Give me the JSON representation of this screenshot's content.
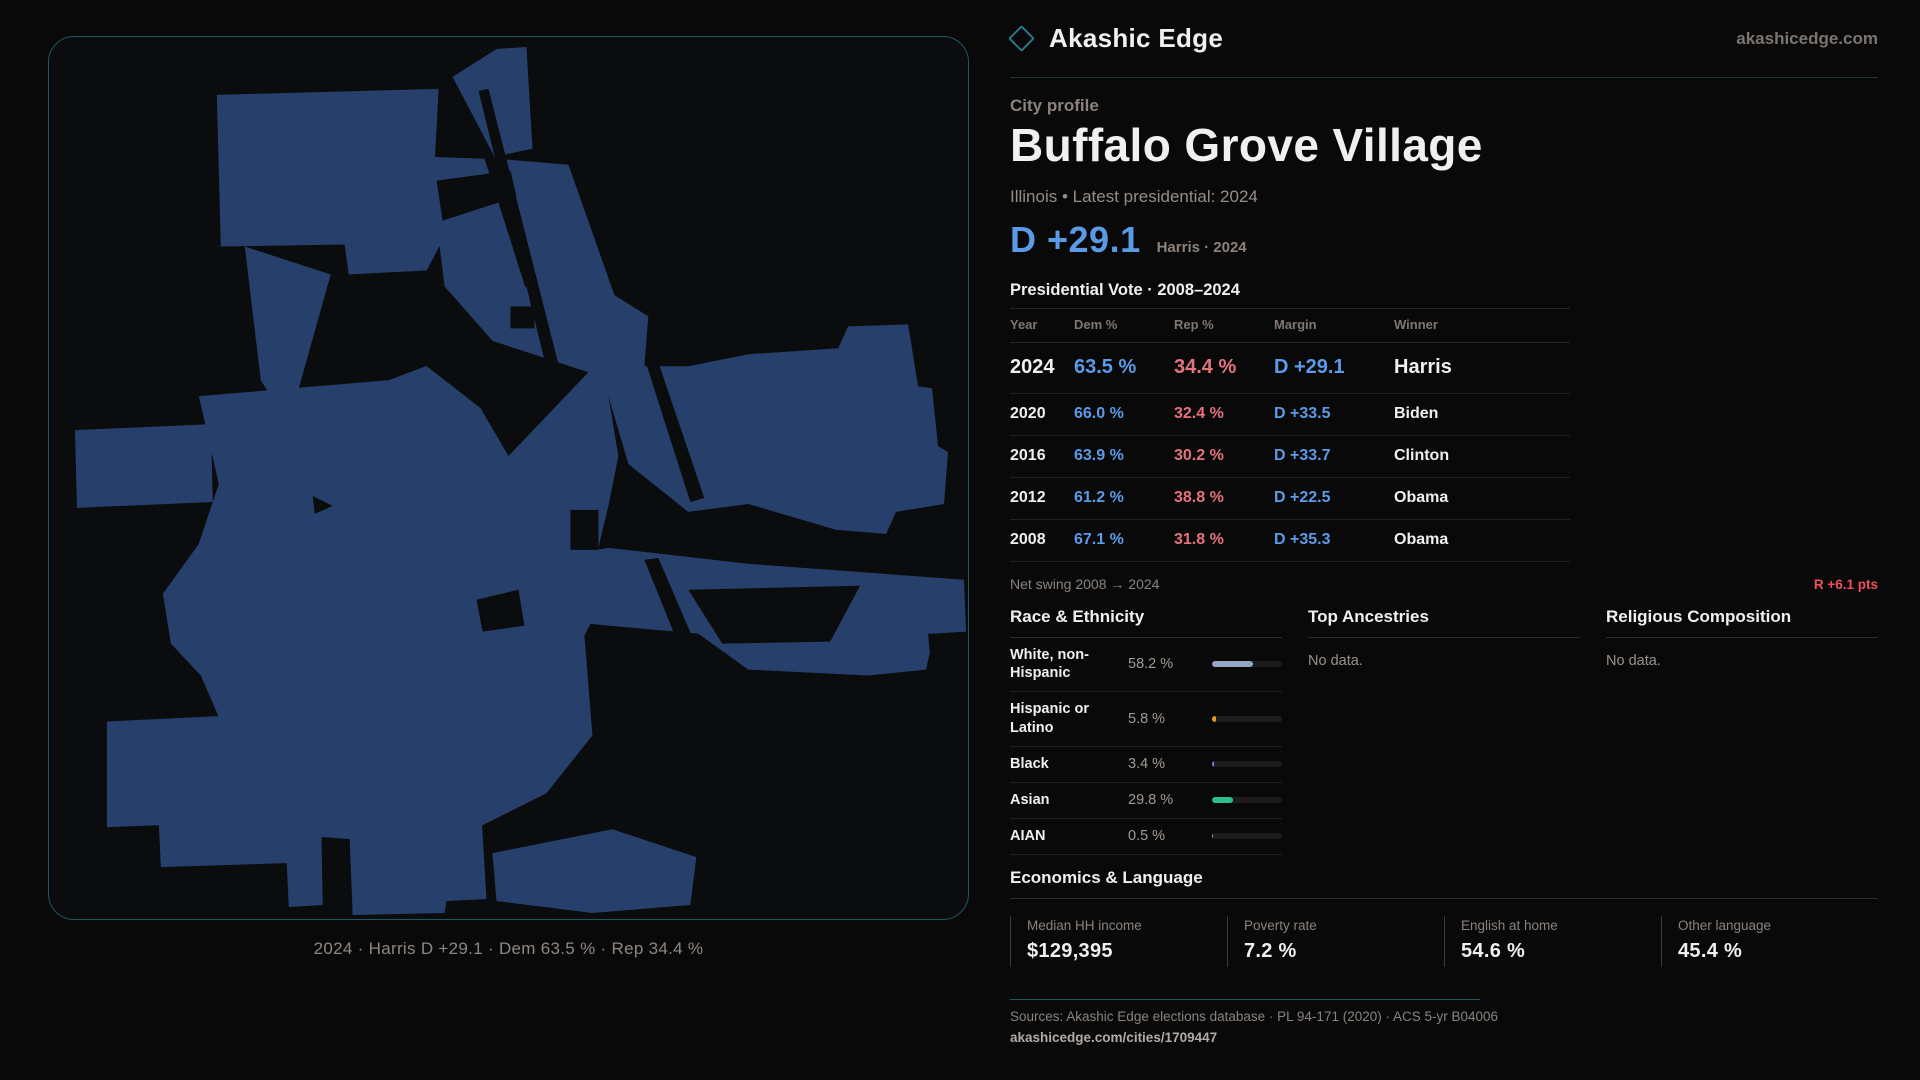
{
  "brand": {
    "name": "Akashic Edge",
    "domain": "akashicedge.com",
    "logo_icon": "diamond-outline-icon"
  },
  "page": {
    "kicker": "City profile",
    "title": "Buffalo Grove Village",
    "subtitle": "Illinois • Latest presidential: 2024"
  },
  "headline_margin": {
    "value": "D +29.1",
    "detail": "Harris · 2024"
  },
  "map": {
    "caption": "2024 · Harris D +29.1 · Dem 63.5 % · Rep 34.4 %",
    "boundary_color": "#26406b"
  },
  "vote_table": {
    "title": "Presidential Vote · 2008–2024",
    "columns": {
      "year": "Year",
      "dem": "Dem %",
      "rep": "Rep %",
      "margin": "Margin",
      "winner": "Winner"
    },
    "rows": [
      {
        "year": "2024",
        "dem": "63.5 %",
        "rep": "34.4 %",
        "margin": "D +29.1",
        "winner": "Harris"
      },
      {
        "year": "2020",
        "dem": "66.0 %",
        "rep": "32.4 %",
        "margin": "D +33.5",
        "winner": "Biden"
      },
      {
        "year": "2016",
        "dem": "63.9 %",
        "rep": "30.2 %",
        "margin": "D +33.7",
        "winner": "Clinton"
      },
      {
        "year": "2012",
        "dem": "61.2 %",
        "rep": "38.8 %",
        "margin": "D +22.5",
        "winner": "Obama"
      },
      {
        "year": "2008",
        "dem": "67.1 %",
        "rep": "31.8 %",
        "margin": "D +35.3",
        "winner": "Obama"
      }
    ],
    "net_swing_label": "Net swing 2008 → 2024",
    "net_swing_value": "R +6.1 pts",
    "accent_dem": "#5b9be8",
    "accent_rep": "#e5737d",
    "accent_swing": "#ef4f5a"
  },
  "race_section": {
    "title": "Race & Ethnicity",
    "rows": [
      {
        "label": "White, non-Hispanic",
        "value": "58.2 %",
        "pct": 58.2,
        "color": "#97a5c4"
      },
      {
        "label": "Hispanic or Latino",
        "value": "5.8 %",
        "pct": 5.8,
        "color": "#e89c20"
      },
      {
        "label": "Black",
        "value": "3.4 %",
        "pct": 3.4,
        "color": "#8a7ae0"
      },
      {
        "label": "Asian",
        "value": "29.8 %",
        "pct": 29.8,
        "color": "#2dbe8d"
      },
      {
        "label": "AIAN",
        "value": "0.5 %",
        "pct": 0.5,
        "color": "#97a5c4"
      }
    ]
  },
  "ancestries_section": {
    "title": "Top Ancestries",
    "empty": "No data."
  },
  "religion_section": {
    "title": "Religious Composition",
    "empty": "No data."
  },
  "economics_section": {
    "title": "Economics & Language",
    "stats": [
      {
        "label": "Median HH income",
        "value": "$129,395"
      },
      {
        "label": "Poverty rate",
        "value": "7.2 %"
      },
      {
        "label": "English at home",
        "value": "54.6 %"
      },
      {
        "label": "Other language",
        "value": "45.4 %"
      }
    ]
  },
  "footer": {
    "sources": "Sources: Akashic Edge elections database · PL 94-171 (2020) · ACS 5-yr B04006",
    "permalink": "akashicedge.com/cities/1709447"
  }
}
